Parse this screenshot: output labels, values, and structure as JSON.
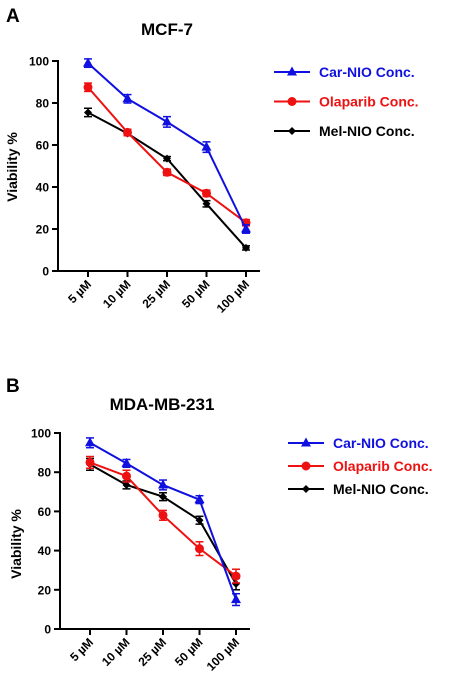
{
  "panels": [
    {
      "letter": "A",
      "title": "MCF-7",
      "ylabel": "Viability %"
    },
    {
      "letter": "B",
      "title": "MDA-MB-231",
      "ylabel": "Viability %"
    }
  ],
  "colors": {
    "car_nio": "#1010e0",
    "olaparib": "#ee1111",
    "mel_nio": "#000000"
  },
  "chart_data": [
    {
      "type": "line",
      "title": "MCF-7",
      "ylabel": "Viability %",
      "xlabel": "",
      "categories": [
        "5 µM",
        "10 µM",
        "25 µM",
        "50 µM",
        "100 µM"
      ],
      "ylim": [
        0,
        100
      ],
      "yticks": [
        0,
        20,
        40,
        60,
        80,
        100
      ],
      "legend_position": "right",
      "series": [
        {
          "name": "Car-NIO Conc.",
          "marker": "triangle",
          "color": "#1010e0",
          "values": [
            99,
            82,
            71,
            59,
            20
          ],
          "errors": [
            2,
            2,
            2.5,
            2.5,
            2
          ]
        },
        {
          "name": "Olaparib Conc.",
          "marker": "circle",
          "color": "#ee1111",
          "values": [
            87.5,
            66,
            47,
            37,
            23
          ],
          "errors": [
            2,
            1.5,
            1.5,
            1.5,
            1.5
          ]
        },
        {
          "name": "Mel-NIO Conc.",
          "marker": "diamond",
          "color": "#000000",
          "values": [
            75.5,
            65.5,
            53.5,
            32,
            11
          ],
          "errors": [
            2,
            1,
            1,
            1.5,
            1
          ]
        }
      ]
    },
    {
      "type": "line",
      "title": "MDA-MB-231",
      "ylabel": "Viability %",
      "xlabel": "",
      "categories": [
        "5 µM",
        "10 µM",
        "25 µM",
        "50 µM",
        "100 µM"
      ],
      "ylim": [
        0,
        100
      ],
      "yticks": [
        0,
        20,
        40,
        60,
        80,
        100
      ],
      "legend_position": "right",
      "series": [
        {
          "name": "Car-NIO Conc.",
          "marker": "triangle",
          "color": "#1010e0",
          "values": [
            95,
            84.5,
            73.5,
            66,
            15
          ],
          "errors": [
            2.5,
            2,
            2.5,
            2,
            3
          ]
        },
        {
          "name": "Olaparib Conc.",
          "marker": "circle",
          "color": "#ee1111",
          "values": [
            85,
            78,
            58,
            41,
            27
          ],
          "errors": [
            3,
            3,
            2.5,
            3.5,
            3.5
          ]
        },
        {
          "name": "Mel-NIO Conc.",
          "marker": "diamond",
          "color": "#000000",
          "values": [
            84,
            73.5,
            67.5,
            55.5,
            23
          ],
          "errors": [
            3,
            2,
            2,
            2,
            3
          ]
        }
      ]
    }
  ]
}
